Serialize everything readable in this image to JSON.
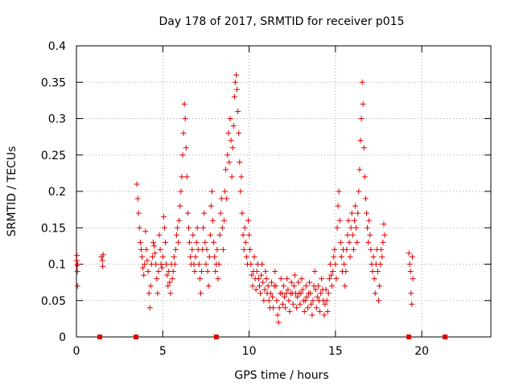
{
  "chart_data": {
    "type": "scatter",
    "title": "Day 178 of 2017, SRMTID for receiver p015",
    "xlabel": "GPS time / hours",
    "ylabel": "SRMTID / TECUs",
    "xlim": [
      0,
      24
    ],
    "ylim": [
      0,
      0.4
    ],
    "xticks": [
      0,
      5,
      10,
      15,
      20
    ],
    "yticks": [
      0,
      0.05,
      0.1,
      0.15,
      0.2,
      0.25,
      0.3,
      0.35,
      0.4
    ],
    "xtick_labels": [
      "0",
      "5",
      "10",
      "15",
      "20"
    ],
    "ytick_labels": [
      "0",
      "0.05",
      "0.1",
      "0.15",
      "0.2",
      "0.25",
      "0.3",
      "0.35",
      "0.4"
    ],
    "grid": true,
    "marker": "+",
    "color": "#e00000",
    "series": [
      {
        "name": "SRMTID p015",
        "points": [
          [
            0.02,
            0.105
          ],
          [
            0.03,
            0.112
          ],
          [
            0.04,
            0.098
          ],
          [
            0.05,
            0.09
          ],
          [
            0.06,
            0.07
          ],
          [
            0.07,
            0.1
          ],
          [
            1.45,
            0.11
          ],
          [
            1.5,
            0.105
          ],
          [
            1.52,
            0.097
          ],
          [
            1.55,
            0.113
          ],
          [
            3.5,
            0.21
          ],
          [
            3.55,
            0.19
          ],
          [
            3.6,
            0.17
          ],
          [
            3.65,
            0.15
          ],
          [
            3.7,
            0.13
          ],
          [
            3.75,
            0.12
          ],
          [
            3.8,
            0.11
          ],
          [
            3.85,
            0.095
          ],
          [
            3.9,
            0.085
          ],
          [
            3.95,
            0.1
          ],
          [
            4.0,
            0.145
          ],
          [
            4.05,
            0.12
          ],
          [
            4.1,
            0.105
          ],
          [
            4.15,
            0.09
          ],
          [
            4.2,
            0.06
          ],
          [
            4.25,
            0.04
          ],
          [
            4.3,
            0.07
          ],
          [
            4.35,
            0.1
          ],
          [
            4.4,
            0.11
          ],
          [
            4.45,
            0.13
          ],
          [
            4.5,
            0.125
          ],
          [
            4.55,
            0.115
          ],
          [
            4.6,
            0.1
          ],
          [
            4.65,
            0.08
          ],
          [
            4.7,
            0.06
          ],
          [
            4.75,
            0.09
          ],
          [
            4.8,
            0.14
          ],
          [
            4.85,
            0.12
          ],
          [
            4.9,
            0.1
          ],
          [
            4.95,
            0.095
          ],
          [
            5.0,
            0.11
          ],
          [
            5.05,
            0.165
          ],
          [
            5.1,
            0.15
          ],
          [
            5.15,
            0.13
          ],
          [
            5.2,
            0.1
          ],
          [
            5.25,
            0.085
          ],
          [
            5.3,
            0.07
          ],
          [
            5.35,
            0.09
          ],
          [
            5.4,
            0.075
          ],
          [
            5.45,
            0.06
          ],
          [
            5.5,
            0.1
          ],
          [
            5.55,
            0.08
          ],
          [
            5.6,
            0.09
          ],
          [
            5.65,
            0.11
          ],
          [
            5.7,
            0.1
          ],
          [
            5.75,
            0.12
          ],
          [
            5.8,
            0.14
          ],
          [
            5.85,
            0.15
          ],
          [
            5.9,
            0.13
          ],
          [
            5.95,
            0.16
          ],
          [
            6.0,
            0.18
          ],
          [
            6.05,
            0.2
          ],
          [
            6.1,
            0.22
          ],
          [
            6.15,
            0.25
          ],
          [
            6.2,
            0.28
          ],
          [
            6.25,
            0.32
          ],
          [
            6.3,
            0.3
          ],
          [
            6.35,
            0.26
          ],
          [
            6.4,
            0.22
          ],
          [
            6.45,
            0.17
          ],
          [
            6.5,
            0.15
          ],
          [
            6.55,
            0.13
          ],
          [
            6.6,
            0.11
          ],
          [
            6.65,
            0.1
          ],
          [
            6.7,
            0.12
          ],
          [
            6.75,
            0.14
          ],
          [
            6.8,
            0.1
          ],
          [
            6.85,
            0.09
          ],
          [
            6.9,
            0.11
          ],
          [
            6.95,
            0.13
          ],
          [
            7.0,
            0.15
          ],
          [
            7.05,
            0.12
          ],
          [
            7.1,
            0.1
          ],
          [
            7.15,
            0.08
          ],
          [
            7.2,
            0.06
          ],
          [
            7.25,
            0.09
          ],
          [
            7.3,
            0.12
          ],
          [
            7.35,
            0.15
          ],
          [
            7.4,
            0.17
          ],
          [
            7.45,
            0.13
          ],
          [
            7.5,
            0.1
          ],
          [
            7.55,
            0.12
          ],
          [
            7.6,
            0.09
          ],
          [
            7.65,
            0.07
          ],
          [
            7.7,
            0.11
          ],
          [
            7.75,
            0.14
          ],
          [
            7.8,
            0.18
          ],
          [
            7.85,
            0.2
          ],
          [
            7.9,
            0.16
          ],
          [
            7.95,
            0.13
          ],
          [
            8.0,
            0.11
          ],
          [
            8.05,
            0.09
          ],
          [
            8.1,
            0.1
          ],
          [
            8.15,
            0.12
          ],
          [
            8.2,
            0.08
          ],
          [
            8.25,
            0.1
          ],
          [
            8.3,
            0.14
          ],
          [
            8.35,
            0.17
          ],
          [
            8.4,
            0.19
          ],
          [
            8.45,
            0.15
          ],
          [
            8.5,
            0.12
          ],
          [
            8.55,
            0.16
          ],
          [
            8.6,
            0.2
          ],
          [
            8.65,
            0.23
          ],
          [
            8.7,
            0.19
          ],
          [
            8.75,
            0.25
          ],
          [
            8.8,
            0.28
          ],
          [
            8.85,
            0.24
          ],
          [
            8.9,
            0.3
          ],
          [
            8.95,
            0.27
          ],
          [
            9.0,
            0.22
          ],
          [
            9.05,
            0.26
          ],
          [
            9.1,
            0.29
          ],
          [
            9.15,
            0.33
          ],
          [
            9.2,
            0.35
          ],
          [
            9.25,
            0.36
          ],
          [
            9.3,
            0.34
          ],
          [
            9.35,
            0.31
          ],
          [
            9.4,
            0.28
          ],
          [
            9.45,
            0.24
          ],
          [
            9.5,
            0.2
          ],
          [
            9.55,
            0.22
          ],
          [
            9.6,
            0.17
          ],
          [
            9.65,
            0.14
          ],
          [
            9.7,
            0.12
          ],
          [
            9.75,
            0.15
          ],
          [
            9.8,
            0.13
          ],
          [
            9.85,
            0.11
          ],
          [
            9.9,
            0.1
          ],
          [
            9.95,
            0.16
          ],
          [
            10.0,
            0.14
          ],
          [
            10.05,
            0.12
          ],
          [
            10.1,
            0.1
          ],
          [
            10.15,
            0.085
          ],
          [
            10.2,
            0.07
          ],
          [
            10.25,
            0.09
          ],
          [
            10.3,
            0.11
          ],
          [
            10.35,
            0.08
          ],
          [
            10.4,
            0.065
          ],
          [
            10.45,
            0.09
          ],
          [
            10.5,
            0.1
          ],
          [
            10.55,
            0.08
          ],
          [
            10.6,
            0.07
          ],
          [
            10.65,
            0.06
          ],
          [
            10.7,
            0.085
          ],
          [
            10.75,
            0.1
          ],
          [
            10.8,
            0.075
          ],
          [
            10.85,
            0.05
          ],
          [
            10.9,
            0.065
          ],
          [
            10.95,
            0.09
          ],
          [
            11.0,
            0.08
          ],
          [
            11.05,
            0.06
          ],
          [
            11.1,
            0.07
          ],
          [
            11.15,
            0.05
          ],
          [
            11.2,
            0.04
          ],
          [
            11.25,
            0.06
          ],
          [
            11.3,
            0.075
          ],
          [
            11.35,
            0.055
          ],
          [
            11.4,
            0.04
          ],
          [
            11.45,
            0.07
          ],
          [
            11.5,
            0.09
          ],
          [
            11.55,
            0.07
          ],
          [
            11.6,
            0.05
          ],
          [
            11.65,
            0.03
          ],
          [
            11.7,
            0.02
          ],
          [
            11.75,
            0.04
          ],
          [
            11.8,
            0.06
          ],
          [
            11.85,
            0.08
          ],
          [
            11.9,
            0.06
          ],
          [
            11.95,
            0.045
          ],
          [
            12.0,
            0.07
          ],
          [
            12.05,
            0.055
          ],
          [
            12.1,
            0.04
          ],
          [
            12.15,
            0.06
          ],
          [
            12.2,
            0.08
          ],
          [
            12.25,
            0.065
          ],
          [
            12.3,
            0.05
          ],
          [
            12.35,
            0.035
          ],
          [
            12.4,
            0.06
          ],
          [
            12.45,
            0.075
          ],
          [
            12.5,
            0.06
          ],
          [
            12.55,
            0.045
          ],
          [
            12.6,
            0.07
          ],
          [
            12.65,
            0.085
          ],
          [
            12.7,
            0.06
          ],
          [
            12.75,
            0.04
          ],
          [
            12.8,
            0.055
          ],
          [
            12.85,
            0.075
          ],
          [
            12.9,
            0.06
          ],
          [
            12.95,
            0.045
          ],
          [
            13.0,
            0.06
          ],
          [
            13.05,
            0.08
          ],
          [
            13.1,
            0.065
          ],
          [
            13.15,
            0.05
          ],
          [
            13.2,
            0.035
          ],
          [
            13.25,
            0.05
          ],
          [
            13.3,
            0.07
          ],
          [
            13.35,
            0.055
          ],
          [
            13.4,
            0.04
          ],
          [
            13.45,
            0.06
          ],
          [
            13.5,
            0.075
          ],
          [
            13.55,
            0.06
          ],
          [
            13.6,
            0.045
          ],
          [
            13.65,
            0.03
          ],
          [
            13.7,
            0.05
          ],
          [
            13.75,
            0.07
          ],
          [
            13.8,
            0.09
          ],
          [
            13.85,
            0.065
          ],
          [
            13.9,
            0.04
          ],
          [
            13.95,
            0.055
          ],
          [
            14.0,
            0.07
          ],
          [
            14.05,
            0.05
          ],
          [
            14.1,
            0.035
          ],
          [
            14.15,
            0.06
          ],
          [
            14.2,
            0.08
          ],
          [
            14.25,
            0.065
          ],
          [
            14.3,
            0.05
          ],
          [
            14.35,
            0.03
          ],
          [
            14.4,
            0.045
          ],
          [
            14.45,
            0.065
          ],
          [
            14.5,
            0.05
          ],
          [
            14.55,
            0.035
          ],
          [
            14.6,
            0.06
          ],
          [
            14.65,
            0.08
          ],
          [
            14.7,
            0.1
          ],
          [
            14.75,
            0.085
          ],
          [
            14.8,
            0.07
          ],
          [
            14.85,
            0.09
          ],
          [
            14.9,
            0.11
          ],
          [
            14.95,
            0.12
          ],
          [
            15.0,
            0.1
          ],
          [
            15.05,
            0.08
          ],
          [
            15.1,
            0.15
          ],
          [
            15.15,
            0.18
          ],
          [
            15.2,
            0.2
          ],
          [
            15.25,
            0.16
          ],
          [
            15.3,
            0.13
          ],
          [
            15.35,
            0.11
          ],
          [
            15.4,
            0.09
          ],
          [
            15.45,
            0.12
          ],
          [
            15.5,
            0.1
          ],
          [
            15.55,
            0.07
          ],
          [
            15.6,
            0.09
          ],
          [
            15.65,
            0.12
          ],
          [
            15.7,
            0.14
          ],
          [
            15.75,
            0.16
          ],
          [
            15.8,
            0.13
          ],
          [
            15.85,
            0.11
          ],
          [
            15.9,
            0.15
          ],
          [
            15.95,
            0.17
          ],
          [
            16.0,
            0.14
          ],
          [
            16.05,
            0.12
          ],
          [
            16.1,
            0.16
          ],
          [
            16.15,
            0.18
          ],
          [
            16.2,
            0.15
          ],
          [
            16.25,
            0.13
          ],
          [
            16.3,
            0.17
          ],
          [
            16.35,
            0.2
          ],
          [
            16.4,
            0.23
          ],
          [
            16.45,
            0.27
          ],
          [
            16.5,
            0.3
          ],
          [
            16.55,
            0.35
          ],
          [
            16.6,
            0.32
          ],
          [
            16.65,
            0.26
          ],
          [
            16.7,
            0.22
          ],
          [
            16.75,
            0.19
          ],
          [
            16.8,
            0.17
          ],
          [
            16.85,
            0.15
          ],
          [
            16.9,
            0.13
          ],
          [
            16.95,
            0.16
          ],
          [
            17.0,
            0.14
          ],
          [
            17.05,
            0.12
          ],
          [
            17.1,
            0.1
          ],
          [
            17.15,
            0.09
          ],
          [
            17.2,
            0.11
          ],
          [
            17.25,
            0.08
          ],
          [
            17.3,
            0.06
          ],
          [
            17.35,
            0.1
          ],
          [
            17.4,
            0.12
          ],
          [
            17.45,
            0.09
          ],
          [
            17.5,
            0.05
          ],
          [
            17.55,
            0.07
          ],
          [
            17.6,
            0.1
          ],
          [
            17.65,
            0.12
          ],
          [
            17.7,
            0.11
          ],
          [
            17.75,
            0.13
          ],
          [
            17.8,
            0.155
          ],
          [
            17.85,
            0.14
          ],
          [
            19.25,
            0.115
          ],
          [
            19.3,
            0.1
          ],
          [
            19.35,
            0.09
          ],
          [
            19.38,
            0.06
          ],
          [
            19.42,
            0.045
          ],
          [
            19.45,
            0.11
          ],
          [
            19.48,
            0.08
          ]
        ]
      }
    ],
    "zero_markers_x": [
      1.35,
      3.45,
      8.1,
      19.25,
      21.35
    ]
  }
}
